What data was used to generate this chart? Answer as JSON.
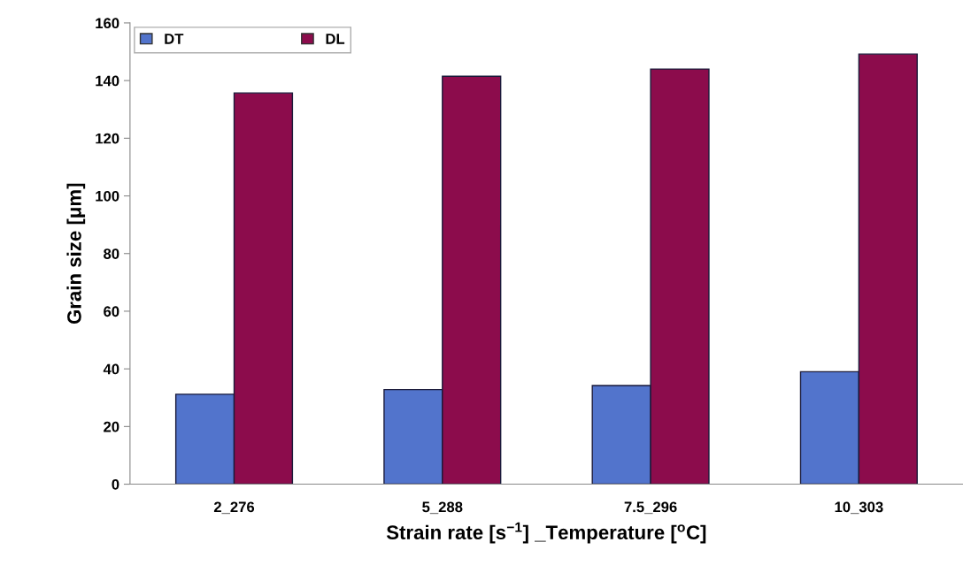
{
  "chart_data": {
    "type": "bar",
    "categories": [
      "2_276",
      "5_288",
      "7.5_296",
      "10_303"
    ],
    "series": [
      {
        "name": "DT",
        "color": "#5274cc",
        "values": [
          31.2,
          32.8,
          34.2,
          39.0
        ]
      },
      {
        "name": "DL",
        "color": "#8c0c4c",
        "values": [
          135.7,
          141.5,
          144.0,
          149.2
        ]
      }
    ],
    "xlabel": "Strain rate [s$^{−1}$] _Temperature [$^{o}$C]",
    "ylabel": "Grain size [μm]",
    "ylim": [
      0,
      160
    ],
    "yticks": [
      0,
      20,
      40,
      60,
      80,
      100,
      120,
      140,
      160
    ],
    "grid": false,
    "legend": "top left"
  }
}
